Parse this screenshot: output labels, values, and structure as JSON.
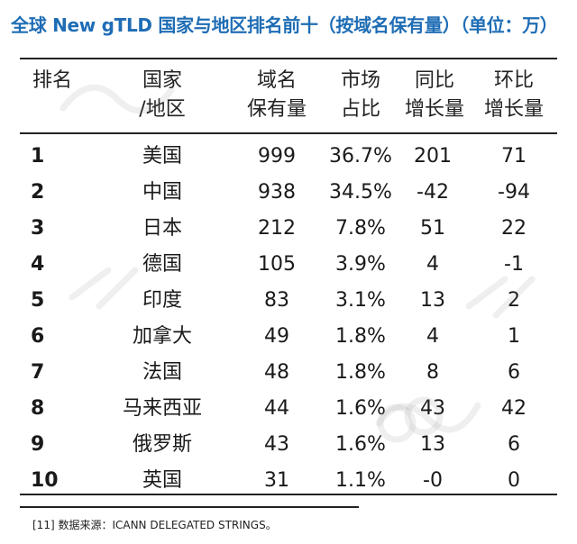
{
  "title": "全球 New gTLD 国家与地区排名前十（按域名保有量）（单位：万）",
  "headers": {
    "rank": [
      "排名"
    ],
    "country": [
      "国家",
      "/地区"
    ],
    "count": [
      "域名",
      "保有量"
    ],
    "share": [
      "市场",
      "占比"
    ],
    "yoy": [
      "同比",
      "增长量"
    ],
    "mom": [
      "环比",
      "增长量"
    ]
  },
  "rows": [
    {
      "rank": "1",
      "country": "美国",
      "count": "999",
      "share": "36.7%",
      "yoy": "201",
      "mom": "71"
    },
    {
      "rank": "2",
      "country": "中国",
      "count": "938",
      "share": "34.5%",
      "yoy": "-42",
      "mom": "-94"
    },
    {
      "rank": "3",
      "country": "日本",
      "count": "212",
      "share": "7.8%",
      "yoy": "51",
      "mom": "22"
    },
    {
      "rank": "4",
      "country": "德国",
      "count": "105",
      "share": "3.9%",
      "yoy": "4",
      "mom": "-1"
    },
    {
      "rank": "5",
      "country": "印度",
      "count": "83",
      "share": "3.1%",
      "yoy": "13",
      "mom": "2"
    },
    {
      "rank": "6",
      "country": "加拿大",
      "count": "49",
      "share": "1.8%",
      "yoy": "4",
      "mom": "1"
    },
    {
      "rank": "7",
      "country": "法国",
      "count": "48",
      "share": "1.8%",
      "yoy": "8",
      "mom": "6"
    },
    {
      "rank": "8",
      "country": "马来西亚",
      "count": "44",
      "share": "1.6%",
      "yoy": "43",
      "mom": "42"
    },
    {
      "rank": "9",
      "country": "俄罗斯",
      "count": "43",
      "share": "1.6%",
      "yoy": "13",
      "mom": "6"
    },
    {
      "rank": "10",
      "country": "英国",
      "count": "31",
      "share": "1.1%",
      "yoy": "-0",
      "mom": "0"
    }
  ],
  "footnote": "[11] 数据来源：ICANN DELEGATED STRINGS。",
  "colors": {
    "title": "#1f6db5",
    "rule": "#222222"
  }
}
